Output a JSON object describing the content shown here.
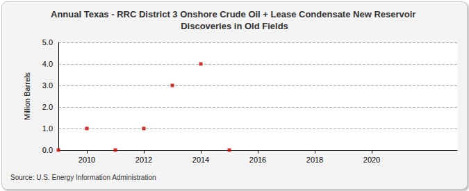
{
  "chart_data": {
    "type": "scatter",
    "title": "Annual Texas - RRC District 3 Onshore Crude Oil + Lease Condensate New Reservoir Discoveries in Old Fields",
    "y_label": "Million Barrels",
    "source": "Source: U.S. Energy Information Administration",
    "x": [
      2009,
      2010,
      2011,
      2012,
      2013,
      2014,
      2015
    ],
    "values": [
      0,
      1,
      0,
      1,
      3,
      4,
      0
    ],
    "color": "#cc0000",
    "marker": "square",
    "xlim": [
      2009,
      2023
    ],
    "xticks": [
      2010,
      2012,
      2014,
      2016,
      2018,
      2020
    ],
    "ylim": [
      0,
      5
    ],
    "yticks": [
      {
        "value": 0,
        "label": "0.0"
      },
      {
        "value": 1,
        "label": "1.0"
      },
      {
        "value": 2,
        "label": "2.0"
      },
      {
        "value": 3,
        "label": "3.0"
      },
      {
        "value": 4,
        "label": "4.0"
      },
      {
        "value": 5,
        "label": "5.0"
      }
    ],
    "grid": true
  }
}
